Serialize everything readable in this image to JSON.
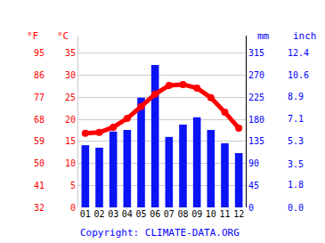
{
  "chart_data": {
    "type": "combo",
    "categories": [
      "01",
      "02",
      "03",
      "04",
      "05",
      "06",
      "07",
      "08",
      "09",
      "10",
      "11",
      "12"
    ],
    "series": [
      {
        "type": "bar",
        "axis": "y2",
        "color": "#0a14f5",
        "values": [
          127,
          122,
          155,
          158,
          224,
          291,
          144,
          169,
          184,
          158,
          131,
          111
        ]
      },
      {
        "type": "line",
        "color": "#ff0000",
        "marker": "circle",
        "line_style": "solid",
        "values": [
          16.8,
          17.0,
          18.2,
          20.2,
          22.9,
          25.7,
          27.7,
          27.9,
          27.1,
          24.9,
          21.6,
          18.0
        ]
      }
    ],
    "ylabel": "°C",
    "ylim": [
      0,
      39
    ],
    "yticks": [
      0,
      5,
      10,
      15,
      20,
      25,
      30,
      35
    ],
    "y2label": "mm",
    "y2lim": [
      0,
      351
    ],
    "y2ticks": [
      0,
      45,
      90,
      135,
      180,
      225,
      270,
      315
    ],
    "y3label": "°F",
    "y3lim": [
      32,
      102.2
    ],
    "y3ticks": [
      32,
      41,
      50,
      59,
      68,
      77,
      86,
      95
    ],
    "y4label": "inch",
    "y4lim": [
      0,
      13.82
    ],
    "y4ticks": [
      {
        "value": 0,
        "label": "0.0"
      },
      1.8,
      3.5,
      5.3,
      7.1,
      8.9,
      10.6,
      12.4
    ],
    "grid": true,
    "annotations": [
      "Copyright: CLIMATE-DATA.ORG"
    ]
  }
}
